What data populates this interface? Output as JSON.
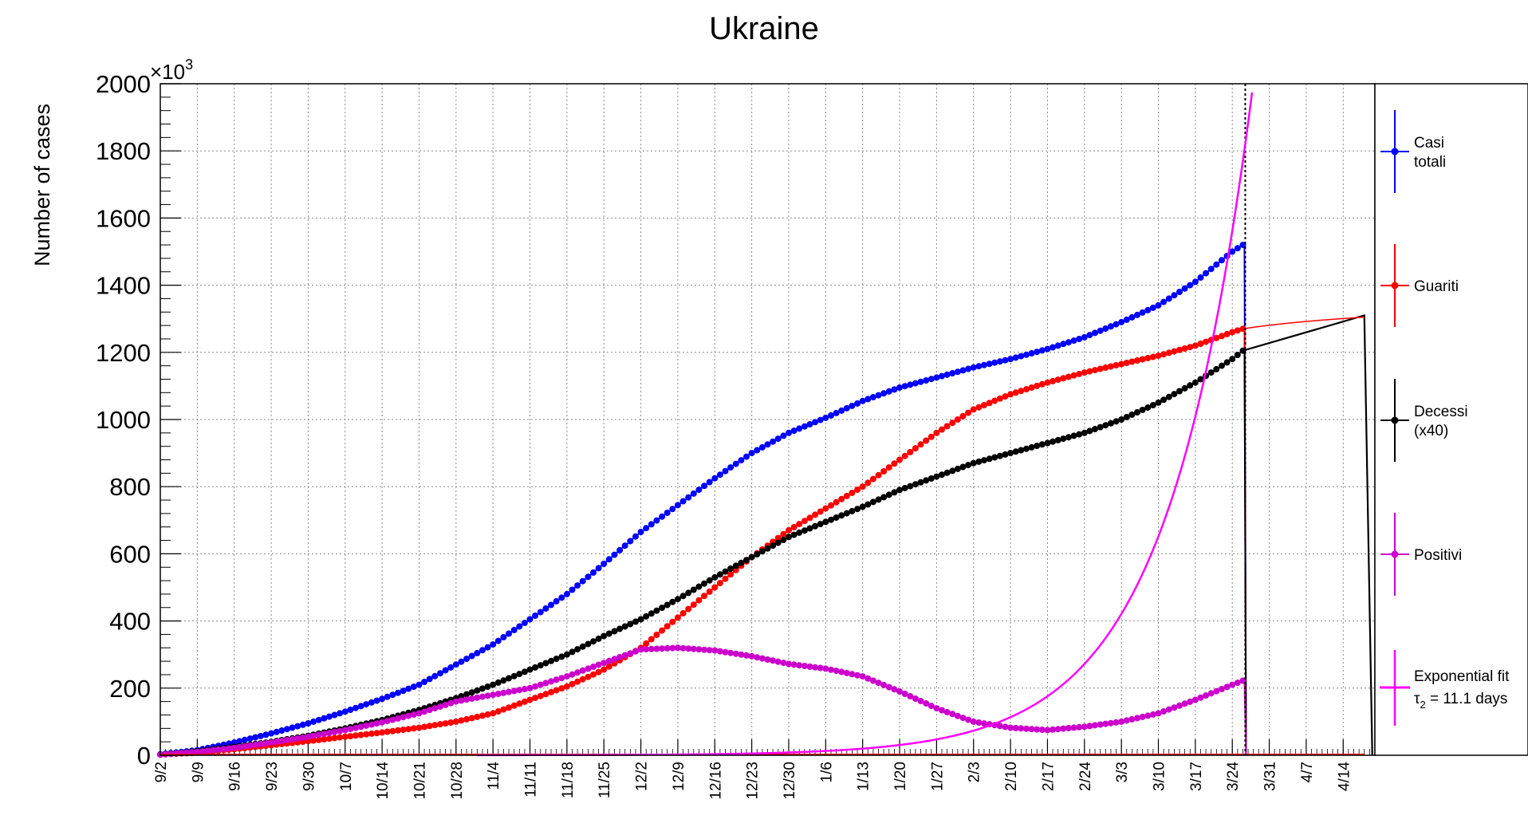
{
  "chart_data": {
    "type": "line",
    "title": "Ukraine",
    "ylabel": "Number of cases",
    "y_multiplier": "×10",
    "y_multiplier_exp": "3",
    "ylim": [
      0,
      2000
    ],
    "y_ticks": [
      0,
      200,
      400,
      600,
      800,
      1000,
      1200,
      1400,
      1600,
      1800,
      2000
    ],
    "x_start_date": "2020-09-02",
    "x_end_date": "2021-04-20",
    "x_tick_labels": [
      "9/2",
      "9/9",
      "9/16",
      "9/23",
      "9/30",
      "10/7",
      "10/14",
      "10/21",
      "10/28",
      "11/4",
      "11/11",
      "11/18",
      "11/25",
      "12/2",
      "12/9",
      "12/16",
      "12/23",
      "12/30",
      "1/6",
      "1/13",
      "1/20",
      "1/27",
      "2/3",
      "2/10",
      "2/17",
      "2/24",
      "3/3",
      "3/10",
      "3/17",
      "3/24",
      "3/31",
      "4/7",
      "4/14"
    ],
    "grid": true,
    "legend_position": "right",
    "vertical_marker_date": "3/26",
    "series": [
      {
        "name": "Casi totali",
        "color": "#0000ff",
        "points": [
          [
            "9/2",
            3
          ],
          [
            "9/9",
            15
          ],
          [
            "9/16",
            38
          ],
          [
            "9/23",
            65
          ],
          [
            "9/30",
            95
          ],
          [
            "10/7",
            130
          ],
          [
            "10/14",
            168
          ],
          [
            "10/21",
            210
          ],
          [
            "10/28",
            270
          ],
          [
            "11/4",
            330
          ],
          [
            "11/11",
            405
          ],
          [
            "11/18",
            480
          ],
          [
            "11/25",
            570
          ],
          [
            "12/2",
            665
          ],
          [
            "12/9",
            745
          ],
          [
            "12/16",
            825
          ],
          [
            "12/23",
            900
          ],
          [
            "12/30",
            960
          ],
          [
            "1/6",
            1005
          ],
          [
            "1/13",
            1055
          ],
          [
            "1/20",
            1095
          ],
          [
            "1/27",
            1125
          ],
          [
            "2/3",
            1155
          ],
          [
            "2/10",
            1180
          ],
          [
            "2/17",
            1210
          ],
          [
            "2/24",
            1245
          ],
          [
            "3/3",
            1290
          ],
          [
            "3/10",
            1340
          ],
          [
            "3/17",
            1410
          ],
          [
            "3/24",
            1500
          ],
          [
            "3/26",
            1520
          ]
        ]
      },
      {
        "name": "Guariti",
        "color": "#ff0000",
        "points": [
          [
            "9/2",
            2
          ],
          [
            "9/9",
            8
          ],
          [
            "9/16",
            18
          ],
          [
            "9/23",
            30
          ],
          [
            "9/30",
            42
          ],
          [
            "10/7",
            55
          ],
          [
            "10/14",
            68
          ],
          [
            "10/21",
            82
          ],
          [
            "10/28",
            100
          ],
          [
            "11/4",
            125
          ],
          [
            "11/11",
            165
          ],
          [
            "11/18",
            205
          ],
          [
            "11/25",
            255
          ],
          [
            "12/2",
            320
          ],
          [
            "12/9",
            410
          ],
          [
            "12/16",
            500
          ],
          [
            "12/23",
            590
          ],
          [
            "12/30",
            670
          ],
          [
            "1/6",
            735
          ],
          [
            "1/13",
            800
          ],
          [
            "1/20",
            880
          ],
          [
            "1/27",
            960
          ],
          [
            "2/3",
            1030
          ],
          [
            "2/10",
            1075
          ],
          [
            "2/17",
            1110
          ],
          [
            "2/24",
            1140
          ],
          [
            "3/3",
            1165
          ],
          [
            "3/10",
            1190
          ],
          [
            "3/17",
            1220
          ],
          [
            "3/24",
            1260
          ],
          [
            "3/26",
            1270
          ]
        ]
      },
      {
        "name": "Decessi (x40)",
        "color": "#000000",
        "points": [
          [
            "9/2",
            2
          ],
          [
            "9/9",
            12
          ],
          [
            "9/16",
            25
          ],
          [
            "9/23",
            40
          ],
          [
            "9/30",
            58
          ],
          [
            "10/7",
            80
          ],
          [
            "10/14",
            105
          ],
          [
            "10/21",
            135
          ],
          [
            "10/28",
            170
          ],
          [
            "11/4",
            210
          ],
          [
            "11/11",
            255
          ],
          [
            "11/18",
            300
          ],
          [
            "11/25",
            355
          ],
          [
            "12/2",
            405
          ],
          [
            "12/9",
            465
          ],
          [
            "12/16",
            530
          ],
          [
            "12/23",
            590
          ],
          [
            "12/30",
            650
          ],
          [
            "1/6",
            695
          ],
          [
            "1/13",
            740
          ],
          [
            "1/20",
            790
          ],
          [
            "1/27",
            830
          ],
          [
            "2/3",
            870
          ],
          [
            "2/10",
            900
          ],
          [
            "2/17",
            930
          ],
          [
            "2/24",
            960
          ],
          [
            "3/3",
            1000
          ],
          [
            "3/10",
            1050
          ],
          [
            "3/17",
            1110
          ],
          [
            "3/24",
            1180
          ],
          [
            "3/26",
            1205
          ]
        ]
      },
      {
        "name": "Positivi",
        "color": "#cc00cc",
        "points": [
          [
            "9/2",
            2
          ],
          [
            "9/9",
            10
          ],
          [
            "9/16",
            22
          ],
          [
            "9/23",
            38
          ],
          [
            "9/30",
            55
          ],
          [
            "10/7",
            75
          ],
          [
            "10/14",
            98
          ],
          [
            "10/21",
            125
          ],
          [
            "10/28",
            160
          ],
          [
            "11/4",
            180
          ],
          [
            "11/11",
            200
          ],
          [
            "11/18",
            235
          ],
          [
            "11/25",
            275
          ],
          [
            "12/2",
            315
          ],
          [
            "12/9",
            320
          ],
          [
            "12/16",
            312
          ],
          [
            "12/23",
            295
          ],
          [
            "12/30",
            272
          ],
          [
            "1/6",
            258
          ],
          [
            "1/13",
            235
          ],
          [
            "1/20",
            190
          ],
          [
            "1/27",
            140
          ],
          [
            "2/3",
            100
          ],
          [
            "2/10",
            82
          ],
          [
            "2/17",
            75
          ],
          [
            "2/24",
            85
          ],
          [
            "3/3",
            100
          ],
          [
            "3/10",
            125
          ],
          [
            "3/17",
            165
          ],
          [
            "3/24",
            210
          ],
          [
            "3/26",
            222
          ]
        ]
      }
    ],
    "fit": {
      "name": "Exponential fit",
      "label_tau": "τ",
      "label_sub": "2",
      "label_rest": " = 11.1 days",
      "color": "#ff00ff",
      "tau2_days": 11.1,
      "value_on_3/26": 1770
    }
  }
}
